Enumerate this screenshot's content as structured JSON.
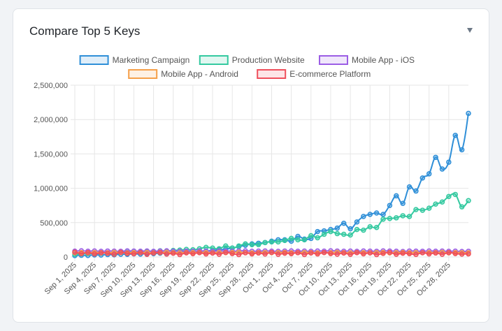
{
  "chart_data": {
    "type": "line",
    "title": "Compare Top 5 Keys",
    "categories": [
      "Sep 1, 2025",
      null,
      null,
      "Sep 4, 2025",
      null,
      null,
      "Sep 7, 2025",
      null,
      null,
      "Sep 10, 2025",
      null,
      null,
      "Sep 13, 2025",
      null,
      null,
      "Sep 16, 2025",
      null,
      null,
      "Sep 19, 2025",
      null,
      null,
      "Sep 22, 2025",
      null,
      null,
      "Sep 25, 2025",
      null,
      null,
      "Sep 28, 2025",
      null,
      null,
      "Oct 1, 2025",
      null,
      null,
      "Oct 4, 2025",
      null,
      null,
      "Oct 7, 2025",
      null,
      null,
      "Oct 10, 2025",
      null,
      null,
      "Oct 13, 2025",
      null,
      null,
      "Oct 16, 2025",
      null,
      null,
      "Oct 19, 2025",
      null,
      null,
      "Oct 22, 2025",
      null,
      null,
      "Oct 25, 2025",
      null,
      null,
      "Oct 28, 2025",
      null,
      null,
      null
    ],
    "ylim": [
      0,
      2500000
    ],
    "yticks": [
      0,
      {
        "value": 500000,
        "label": "500,000"
      },
      {
        "value": 1000000,
        "label": "1,000,000"
      },
      {
        "value": 1500000,
        "label": "1,500,000"
      },
      {
        "value": 2000000,
        "label": "2,000,000"
      },
      {
        "value": 2500000,
        "label": "2,500,000"
      }
    ],
    "grid": true,
    "series": [
      {
        "name": "Marketing Campaign",
        "color": "#2f8fd8",
        "values": [
          20000,
          25000,
          22000,
          30000,
          28000,
          35000,
          32000,
          40000,
          38000,
          45000,
          42000,
          50000,
          48000,
          55000,
          60000,
          58000,
          65000,
          70000,
          68000,
          80000,
          85000,
          95000,
          105000,
          115000,
          130000,
          150000,
          170000,
          190000,
          200000,
          210000,
          230000,
          250000,
          250000,
          230000,
          300000,
          260000,
          270000,
          370000,
          380000,
          400000,
          420000,
          490000,
          410000,
          510000,
          590000,
          620000,
          640000,
          620000,
          750000,
          890000,
          780000,
          1020000,
          960000,
          1150000,
          1210000,
          1450000,
          1280000,
          1380000,
          1770000,
          1560000,
          2090000
        ]
      },
      {
        "name": "Production Website",
        "color": "#34c9a0",
        "values": [
          40000,
          45000,
          50000,
          48000,
          55000,
          60000,
          58000,
          65000,
          70000,
          68000,
          75000,
          80000,
          78000,
          90000,
          85000,
          95000,
          100000,
          110000,
          105000,
          120000,
          140000,
          130000,
          120000,
          160000,
          130000,
          160000,
          190000,
          180000,
          180000,
          210000,
          220000,
          220000,
          240000,
          270000,
          250000,
          250000,
          310000,
          280000,
          330000,
          370000,
          340000,
          330000,
          320000,
          400000,
          390000,
          440000,
          430000,
          550000,
          560000,
          570000,
          600000,
          590000,
          690000,
          680000,
          710000,
          770000,
          800000,
          880000,
          910000,
          730000,
          820000
        ]
      },
      {
        "name": "Mobile App - iOS",
        "color": "#9b5de5",
        "values": [
          85000,
          90000,
          84000,
          88000,
          82000,
          87000,
          85000,
          83000,
          89000,
          86000,
          84000,
          88000,
          82000,
          86000,
          90000,
          85000,
          83000,
          87000,
          84000,
          89000,
          86000,
          82000,
          88000,
          85000,
          84000,
          87000,
          90000,
          83000,
          86000,
          88000,
          85000,
          82000,
          87000,
          89000,
          84000,
          86000,
          83000,
          88000,
          85000,
          90000,
          87000,
          84000,
          86000,
          82000,
          88000,
          85000,
          83000,
          89000,
          86000,
          84000,
          80000,
          87000,
          85000,
          83000,
          88000,
          84000,
          86000,
          82000,
          85000,
          80000,
          83000
        ]
      },
      {
        "name": "Mobile App - Android",
        "color": "#f5a04a",
        "values": [
          62000,
          65000,
          60000,
          66000,
          63000,
          61000,
          67000,
          64000,
          60000,
          65000,
          63000,
          66000,
          61000,
          64000,
          68000,
          62000,
          60000,
          65000,
          63000,
          67000,
          64000,
          61000,
          66000,
          62000,
          65000,
          68000,
          63000,
          60000,
          64000,
          66000,
          62000,
          65000,
          67000,
          61000,
          63000,
          66000,
          64000,
          60000,
          65000,
          62000,
          68000,
          63000,
          61000,
          66000,
          64000,
          62000,
          65000,
          67000,
          60000,
          63000,
          66000,
          62000,
          64000,
          61000,
          65000,
          63000,
          67000,
          60000,
          64000,
          62000,
          61000
        ]
      },
      {
        "name": "E-commerce Platform",
        "color": "#ef4f5c",
        "values": [
          70000,
          50000,
          65000,
          45000,
          60000,
          55000,
          40000,
          68000,
          52000,
          47000,
          63000,
          38000,
          58000,
          66000,
          42000,
          55000,
          35000,
          60000,
          48000,
          62000,
          44000,
          57000,
          40000,
          66000,
          50000,
          35000,
          61000,
          45000,
          58000,
          43000,
          67000,
          39000,
          55000,
          48000,
          62000,
          36000,
          59000,
          44000,
          65000,
          50000,
          41000,
          57000,
          38000,
          63000,
          46000,
          60000,
          35000,
          52000,
          66000,
          40000,
          55000,
          48000,
          37000,
          62000,
          45000,
          58000,
          40000,
          64000,
          50000,
          42000,
          45000
        ]
      }
    ]
  }
}
